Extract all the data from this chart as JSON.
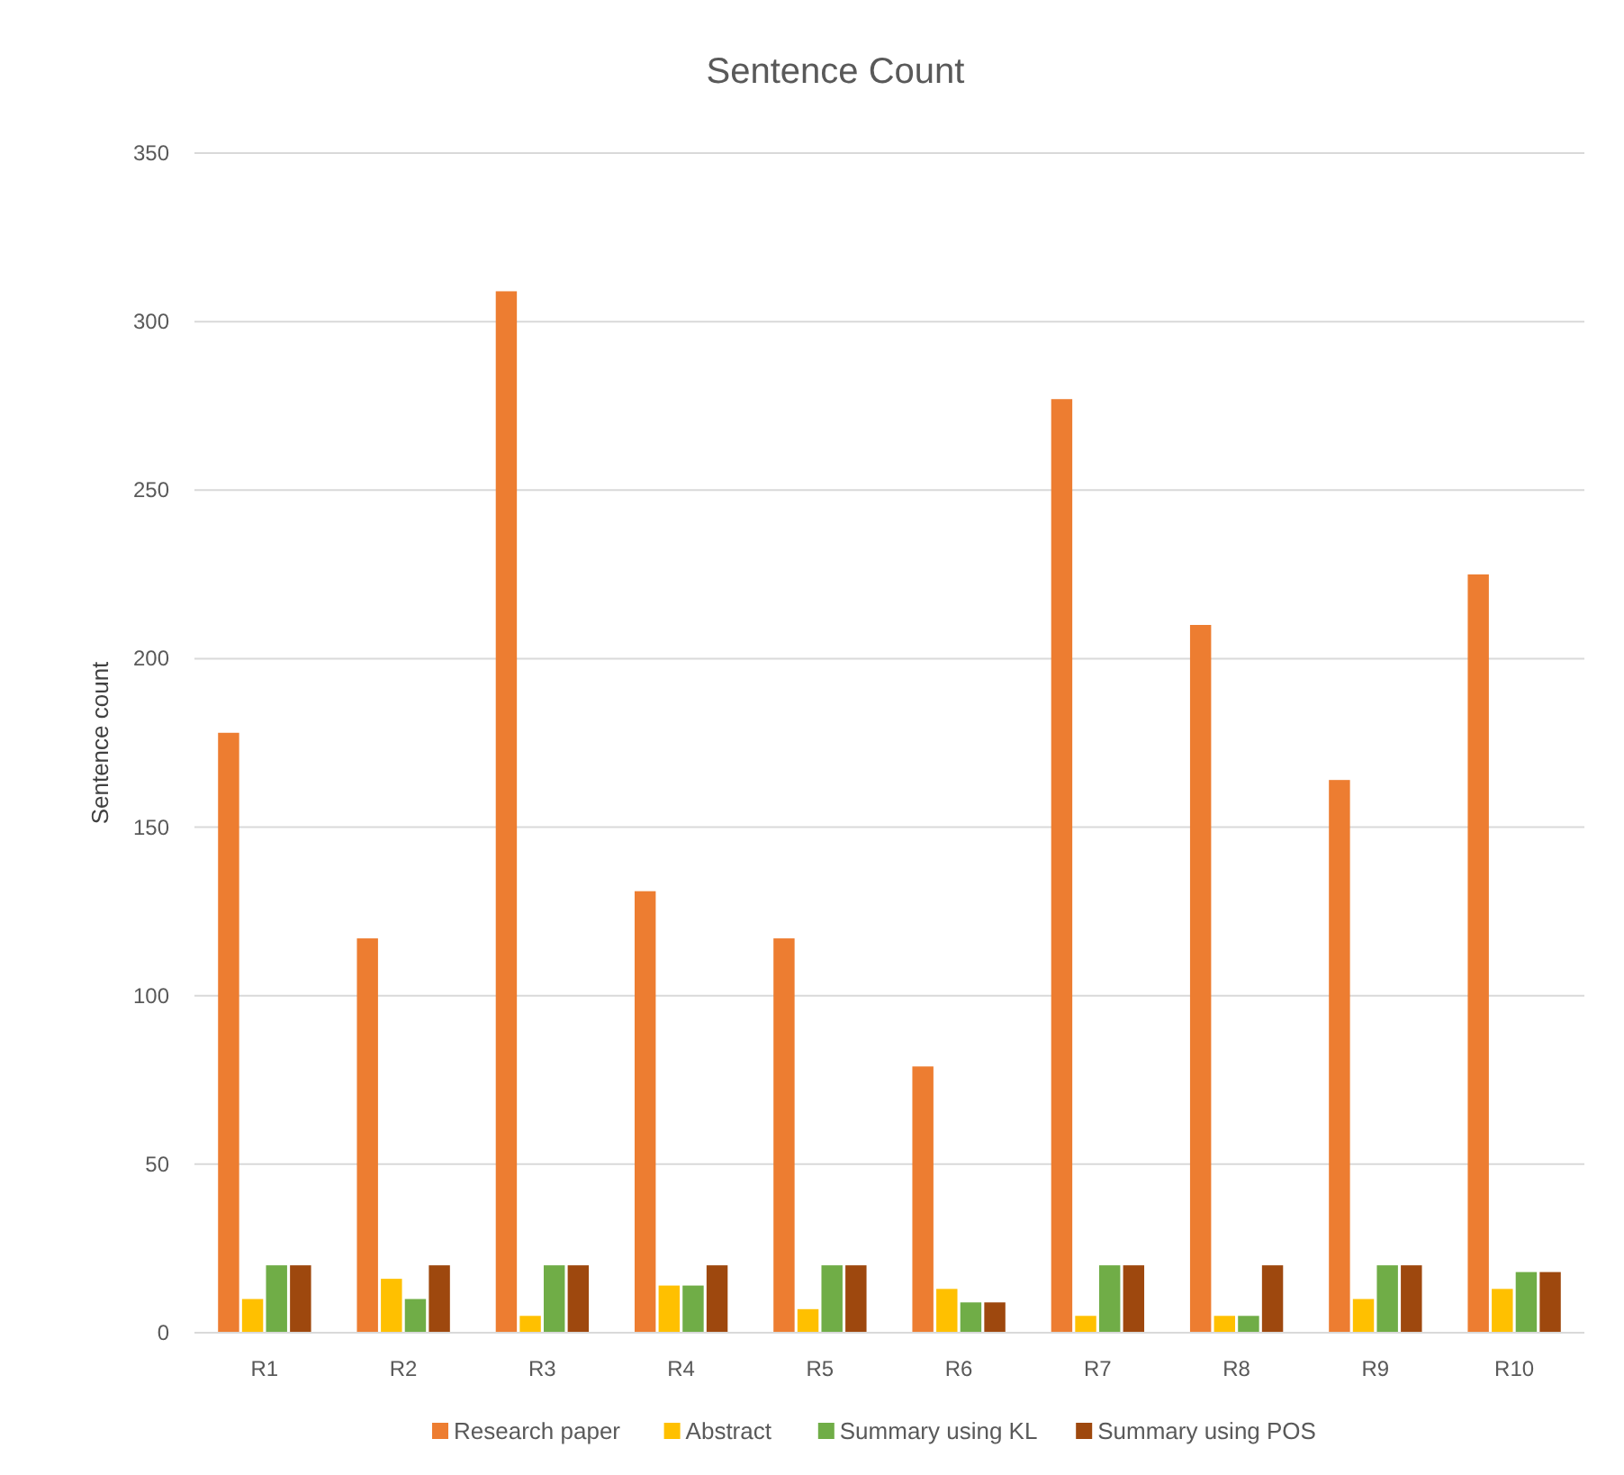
{
  "chart_data": {
    "type": "bar",
    "title": "Sentence Count",
    "ylabel": "Sentence count",
    "categories": [
      "R1",
      "R2",
      "R3",
      "R4",
      "R5",
      "R6",
      "R7",
      "R8",
      "R9",
      "R10"
    ],
    "series": [
      {
        "name": "Research paper",
        "color": "#ed7d31",
        "values": [
          178,
          117,
          309,
          131,
          117,
          79,
          277,
          210,
          164,
          225
        ]
      },
      {
        "name": "Abstract",
        "color": "#ffc000",
        "values": [
          10,
          16,
          5,
          14,
          7,
          13,
          5,
          5,
          10,
          13
        ]
      },
      {
        "name": "Summary using KL",
        "color": "#70ad47",
        "values": [
          20,
          10,
          20,
          14,
          20,
          9,
          20,
          5,
          20,
          18
        ]
      },
      {
        "name": "Summary using POS",
        "color": "#9e480e",
        "values": [
          20,
          20,
          20,
          20,
          20,
          9,
          20,
          20,
          20,
          18
        ]
      }
    ],
    "ylim": [
      0,
      350
    ],
    "yticks": [
      0,
      50,
      100,
      150,
      200,
      250,
      300,
      350
    ],
    "grid": "y",
    "legend": "bottom"
  }
}
